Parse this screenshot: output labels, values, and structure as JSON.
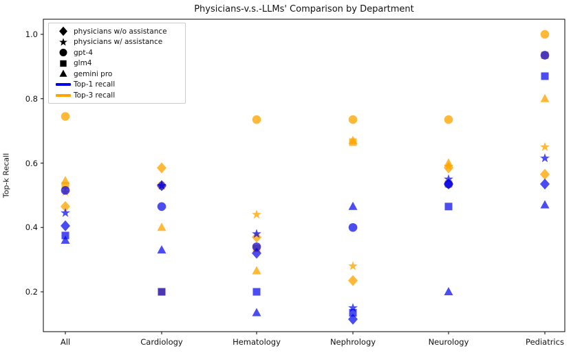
{
  "title": "Physicians-v.s.-LLMs' Comparison by Department",
  "ylabel": "Top-k Recall",
  "colors": {
    "top1": "#0000ee",
    "top3": "#ffa500"
  },
  "legend": {
    "marker_entries": [
      {
        "marker": "diamond",
        "label": "physicians w/o assistance"
      },
      {
        "marker": "star",
        "label": "physicians w/ assistance"
      },
      {
        "marker": "circle",
        "label": "gpt-4"
      },
      {
        "marker": "square",
        "label": "glm4"
      },
      {
        "marker": "triangle",
        "label": "gemini pro"
      }
    ],
    "line_entries": [
      {
        "color_key": "top1",
        "label": "Top-1 recall"
      },
      {
        "color_key": "top3",
        "label": "Top-3 recall"
      }
    ]
  },
  "chart_data": {
    "type": "scatter",
    "title": "Physicians-v.s.-LLMs' Comparison by Department",
    "xlabel": "",
    "ylabel": "Top-k Recall",
    "categories": [
      "All",
      "Cardiology",
      "Hematology",
      "Nephrology",
      "Neurology",
      "Pediatrics"
    ],
    "y_ticks": [
      0.2,
      0.4,
      0.6,
      0.8,
      1.0
    ],
    "ylim": [
      0.076,
      1.047
    ],
    "grid": false,
    "legend_position": "upper-left",
    "series": [
      {
        "name": "physicians w/o assistance (Top-3 recall)",
        "marker": "diamond",
        "recall": "top3",
        "values": [
          0.465,
          0.585,
          0.37,
          0.235,
          0.585,
          0.565
        ]
      },
      {
        "name": "physicians w/ assistance (Top-3 recall)",
        "marker": "star",
        "recall": "top3",
        "values": [
          0.51,
          0.53,
          0.44,
          0.28,
          0.59,
          0.65
        ]
      },
      {
        "name": "gpt-4 (Top-3 recall)",
        "marker": "circle",
        "recall": "top3",
        "values": [
          0.745,
          0.53,
          0.735,
          0.735,
          0.735,
          1.0
        ]
      },
      {
        "name": "glm4 (Top-3 recall)",
        "marker": "square",
        "recall": "top3",
        "values": [
          0.53,
          0.2,
          0.335,
          0.665,
          0.535,
          0.935
        ]
      },
      {
        "name": "gemini pro (Top-3 recall)",
        "marker": "triangle",
        "recall": "top3",
        "values": [
          0.545,
          0.4,
          0.265,
          0.67,
          0.6,
          0.8
        ]
      },
      {
        "name": "physicians w/o assistance (Top-1 recall)",
        "marker": "diamond",
        "recall": "top1",
        "values": [
          0.405,
          0.53,
          0.32,
          0.115,
          0.535,
          0.535
        ]
      },
      {
        "name": "physicians w/ assistance (Top-1 recall)",
        "marker": "star",
        "recall": "top1",
        "values": [
          0.445,
          0.53,
          0.38,
          0.15,
          0.55,
          0.615
        ]
      },
      {
        "name": "gpt-4 (Top-1 recall)",
        "marker": "circle",
        "recall": "top1",
        "values": [
          0.515,
          0.465,
          0.34,
          0.4,
          0.535,
          0.935
        ]
      },
      {
        "name": "glm4 (Top-1 recall)",
        "marker": "square",
        "recall": "top1",
        "values": [
          0.375,
          0.2,
          0.2,
          0.135,
          0.465,
          0.87
        ]
      },
      {
        "name": "gemini pro (Top-1 recall)",
        "marker": "triangle",
        "recall": "top1",
        "values": [
          0.36,
          0.33,
          0.135,
          0.465,
          0.2,
          0.47
        ]
      }
    ]
  }
}
